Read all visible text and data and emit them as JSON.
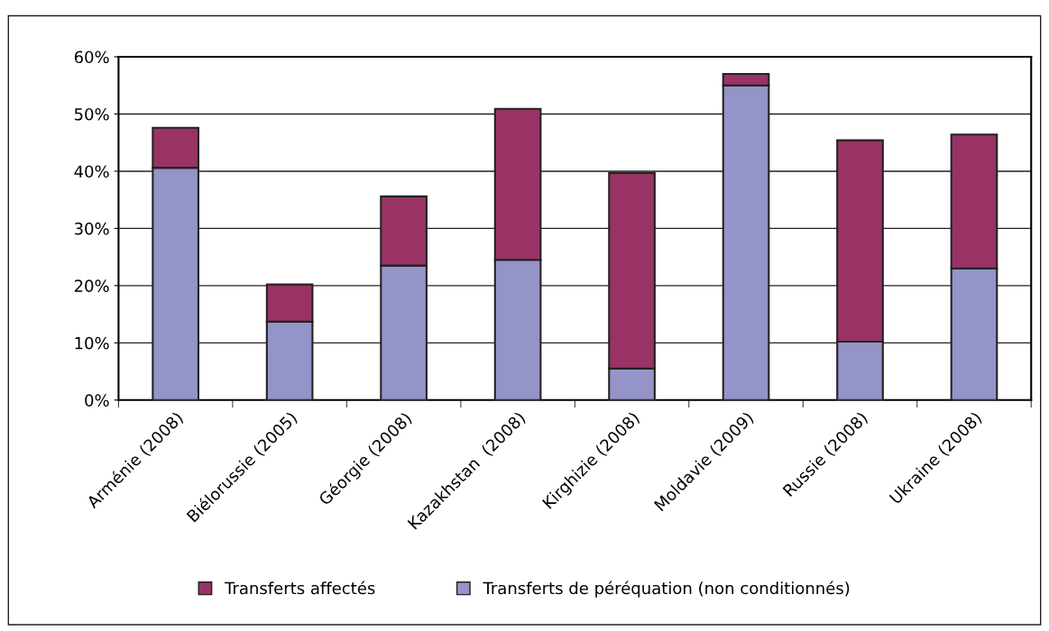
{
  "chart_data": {
    "type": "bar",
    "stacked": true,
    "categories": [
      "Arménie (2008)",
      "Biélorussie (2005)",
      "Géorgie (2008)",
      "Kazakhstan  (2008)",
      "Kirghizie (2008)",
      "Moldavie (2009)",
      "Russie (2008)",
      "Ukraine (2008)"
    ],
    "series": [
      {
        "name": "Transferts de péréquation (non conditionnés)",
        "color": "#9494c8",
        "values": [
          40.6,
          13.7,
          23.5,
          24.5,
          5.5,
          55.0,
          10.2,
          23.0
        ]
      },
      {
        "name": "Transferts affectés",
        "color": "#993366",
        "values": [
          7.0,
          6.5,
          12.1,
          26.4,
          34.2,
          2.0,
          35.2,
          23.4
        ]
      }
    ],
    "ylim": [
      0,
      60
    ],
    "yticks": [
      {
        "value": 0,
        "label": "0%"
      },
      {
        "value": 10,
        "label": "10%"
      },
      {
        "value": 20,
        "label": "20%"
      },
      {
        "value": 30,
        "label": "30%"
      },
      {
        "value": 40,
        "label": "40%"
      },
      {
        "value": 50,
        "label": "50%"
      },
      {
        "value": 60,
        "label": "60%"
      }
    ],
    "grid": "y",
    "legend": "bottom"
  }
}
